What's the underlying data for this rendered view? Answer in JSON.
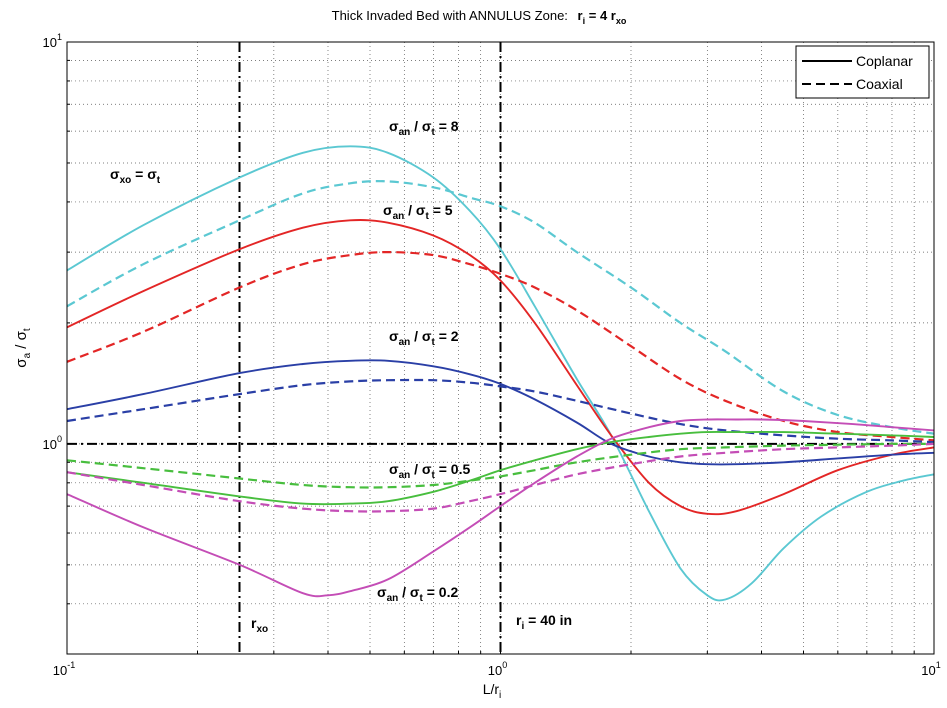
{
  "chart_data": {
    "type": "line",
    "title": {
      "main": "Thick Invaded Bed with ANNULUS Zone:",
      "eq_r": "r",
      "eq_i": "i",
      "eq_mid": " = 4 r",
      "eq_xo": "xo"
    },
    "xlabel": {
      "main": "L/r",
      "sub": "i"
    },
    "ylabel": {
      "sym1": "σ",
      "sub1": "a",
      "mid": " / ",
      "sym2": "σ",
      "sub2": "t"
    },
    "x_scale": "log",
    "y_scale": "log",
    "xlim": [
      0.1,
      10
    ],
    "ylim": [
      0.3,
      10
    ],
    "grid": true,
    "x_ticks": [
      {
        "value": 0.1,
        "base": "10",
        "exp": "-1"
      },
      {
        "value": 1,
        "base": "10",
        "exp": "0"
      },
      {
        "value": 10,
        "base": "10",
        "exp": "1"
      }
    ],
    "y_ticks": [
      {
        "value": 1,
        "base": "10",
        "exp": "0"
      },
      {
        "value": 10,
        "base": "10",
        "exp": "1"
      }
    ],
    "legend": {
      "position": "top-right",
      "entries": [
        {
          "label": "Coplanar",
          "style": "solid"
        },
        {
          "label": "Coaxial",
          "style": "dashed"
        }
      ]
    },
    "series": [
      {
        "group": "8",
        "style": "solid",
        "color": "#5bc8d2",
        "x": [
          0.1,
          0.15,
          0.25,
          0.35,
          0.45,
          0.55,
          0.7,
          0.85,
          1.0,
          1.2,
          1.5,
          1.8,
          2.2,
          2.6,
          3.0,
          3.3,
          3.8,
          4.5,
          5.5,
          7,
          8.5,
          10
        ],
        "y": [
          2.7,
          3.5,
          4.6,
          5.3,
          5.5,
          5.3,
          4.6,
          3.8,
          3.05,
          2.2,
          1.45,
          1.05,
          0.68,
          0.49,
          0.42,
          0.41,
          0.45,
          0.55,
          0.66,
          0.76,
          0.81,
          0.84
        ]
      },
      {
        "group": "8",
        "style": "dashed",
        "color": "#5bc8d2",
        "x": [
          0.1,
          0.15,
          0.25,
          0.35,
          0.45,
          0.55,
          0.7,
          0.85,
          1.0,
          1.2,
          1.5,
          2.0,
          2.6,
          3.3,
          4.5,
          6,
          8,
          10
        ],
        "y": [
          2.2,
          2.8,
          3.6,
          4.2,
          4.45,
          4.5,
          4.35,
          4.1,
          3.9,
          3.55,
          3.0,
          2.45,
          2.0,
          1.7,
          1.35,
          1.18,
          1.1,
          1.06
        ]
      },
      {
        "group": "5",
        "style": "solid",
        "color": "#e32626",
        "x": [
          0.1,
          0.15,
          0.25,
          0.35,
          0.45,
          0.55,
          0.7,
          0.85,
          1.0,
          1.2,
          1.5,
          1.8,
          2.2,
          2.6,
          3.0,
          3.5,
          4.5,
          6,
          8,
          10
        ],
        "y": [
          1.95,
          2.4,
          3.05,
          3.45,
          3.6,
          3.55,
          3.3,
          2.95,
          2.55,
          2.0,
          1.4,
          1.05,
          0.8,
          0.7,
          0.67,
          0.68,
          0.75,
          0.86,
          0.94,
          0.98
        ]
      },
      {
        "group": "5",
        "style": "dashed",
        "color": "#e32626",
        "x": [
          0.1,
          0.15,
          0.25,
          0.35,
          0.45,
          0.55,
          0.7,
          0.85,
          1.0,
          1.2,
          1.5,
          2.0,
          2.6,
          3.3,
          4.5,
          6,
          8,
          10
        ],
        "y": [
          1.6,
          1.9,
          2.45,
          2.8,
          2.95,
          3.0,
          2.95,
          2.8,
          2.65,
          2.45,
          2.15,
          1.75,
          1.45,
          1.28,
          1.14,
          1.07,
          1.04,
          1.02
        ]
      },
      {
        "group": "2",
        "style": "solid",
        "color": "#2a3fa6",
        "x": [
          0.1,
          0.15,
          0.25,
          0.35,
          0.45,
          0.55,
          0.7,
          0.85,
          1.0,
          1.2,
          1.5,
          1.8,
          2.2,
          2.6,
          3.0,
          3.5,
          4.5,
          6,
          8,
          10
        ],
        "y": [
          1.22,
          1.33,
          1.5,
          1.58,
          1.61,
          1.61,
          1.56,
          1.49,
          1.41,
          1.29,
          1.13,
          1.0,
          0.93,
          0.9,
          0.89,
          0.89,
          0.9,
          0.92,
          0.94,
          0.95
        ]
      },
      {
        "group": "2",
        "style": "dashed",
        "color": "#2a3fa6",
        "x": [
          0.1,
          0.15,
          0.25,
          0.35,
          0.45,
          0.55,
          0.7,
          0.85,
          1.0,
          1.2,
          1.5,
          2.0,
          2.6,
          3.3,
          4.5,
          6,
          8,
          10
        ],
        "y": [
          1.14,
          1.22,
          1.33,
          1.4,
          1.43,
          1.44,
          1.44,
          1.42,
          1.39,
          1.35,
          1.28,
          1.19,
          1.12,
          1.08,
          1.05,
          1.03,
          1.02,
          1.01
        ]
      },
      {
        "group": "0.5",
        "style": "solid",
        "color": "#48be3e",
        "x": [
          0.1,
          0.15,
          0.25,
          0.35,
          0.45,
          0.55,
          0.7,
          0.85,
          1.0,
          1.2,
          1.5,
          1.8,
          2.2,
          2.6,
          3.0,
          3.5,
          4.5,
          6,
          8,
          10
        ],
        "y": [
          0.85,
          0.8,
          0.74,
          0.71,
          0.71,
          0.72,
          0.76,
          0.81,
          0.86,
          0.91,
          0.97,
          1.01,
          1.04,
          1.06,
          1.07,
          1.07,
          1.07,
          1.06,
          1.05,
          1.04
        ]
      },
      {
        "group": "0.5",
        "style": "dashed",
        "color": "#48be3e",
        "x": [
          0.1,
          0.15,
          0.25,
          0.35,
          0.45,
          0.55,
          0.7,
          0.85,
          1.0,
          1.2,
          1.5,
          2.0,
          2.6,
          3.3,
          4.5,
          6,
          8,
          10
        ],
        "y": [
          0.91,
          0.87,
          0.82,
          0.79,
          0.78,
          0.78,
          0.79,
          0.81,
          0.83,
          0.86,
          0.9,
          0.94,
          0.97,
          0.98,
          0.99,
          0.995,
          1.0,
          1.0
        ]
      },
      {
        "group": "0.2",
        "style": "solid",
        "color": "#c44db6",
        "x": [
          0.1,
          0.15,
          0.25,
          0.35,
          0.4,
          0.45,
          0.55,
          0.7,
          0.85,
          1.0,
          1.2,
          1.5,
          1.8,
          2.2,
          2.6,
          3.0,
          3.5,
          4,
          5,
          6.5,
          8,
          10
        ],
        "y": [
          0.75,
          0.62,
          0.5,
          0.425,
          0.42,
          0.43,
          0.46,
          0.54,
          0.62,
          0.7,
          0.8,
          0.93,
          1.03,
          1.1,
          1.14,
          1.15,
          1.15,
          1.15,
          1.14,
          1.12,
          1.1,
          1.08
        ]
      },
      {
        "group": "0.2",
        "style": "dashed",
        "color": "#c44db6",
        "x": [
          0.1,
          0.15,
          0.25,
          0.35,
          0.45,
          0.55,
          0.7,
          0.85,
          1.0,
          1.2,
          1.5,
          2.0,
          2.6,
          3.3,
          4.5,
          6,
          8,
          10
        ],
        "y": [
          0.85,
          0.79,
          0.72,
          0.69,
          0.68,
          0.68,
          0.69,
          0.72,
          0.75,
          0.79,
          0.84,
          0.89,
          0.93,
          0.95,
          0.97,
          0.98,
          0.99,
          1.0
        ]
      }
    ],
    "reference_lines": [
      {
        "type": "horizontal",
        "y": 1,
        "style": "dashdot"
      },
      {
        "type": "vertical",
        "x": 0.25,
        "style": "dashdot"
      },
      {
        "type": "vertical",
        "x": 1,
        "style": "dashdot"
      }
    ],
    "annotations": {
      "a8": {
        "s1": "σ",
        "b1": "an",
        "m": " / ",
        "s2": "σ",
        "b2": "t",
        "v": " = 8"
      },
      "a5": {
        "s1": "σ",
        "b1": "an",
        "m": " / ",
        "s2": "σ",
        "b2": "t",
        "v": " = 5"
      },
      "a2": {
        "s1": "σ",
        "b1": "an",
        "m": " / ",
        "s2": "σ",
        "b2": "t",
        "v": " = 2"
      },
      "a05": {
        "s1": "σ",
        "b1": "an",
        "m": " / ",
        "s2": "σ",
        "b2": "t",
        "v": " = 0.5"
      },
      "a02": {
        "s1": "σ",
        "b1": "an",
        "m": " / ",
        "s2": "σ",
        "b2": "t",
        "v": " = 0.2"
      },
      "sxo": {
        "s1": "σ",
        "b1": "xo",
        "m": " = ",
        "s2": "σ",
        "b2": "t"
      },
      "rxo": {
        "r": "r",
        "sub": "xo"
      },
      "ri": {
        "r": "r",
        "sub": "i",
        "v": " = 40 in"
      }
    }
  }
}
